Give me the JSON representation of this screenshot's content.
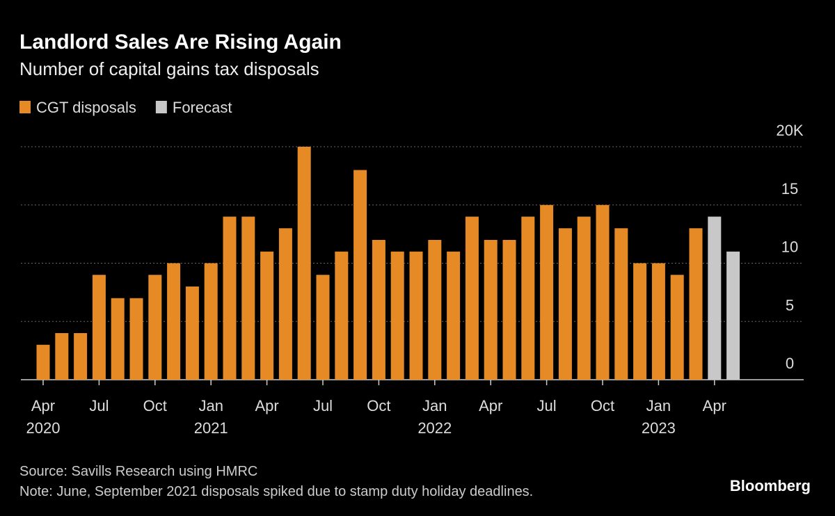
{
  "chart_data": {
    "type": "bar",
    "title": "Landlord Sales Are Rising Again",
    "subtitle": "Number of capital gains tax disposals",
    "source": "Source: Savills Research using HMRC",
    "note": "Note: June, September 2021 disposals spiked due to stamp duty holiday deadlines.",
    "brand": "Bloomberg",
    "categories": [
      "Apr",
      null,
      null,
      "Jul",
      null,
      null,
      "Oct",
      null,
      null,
      "Jan",
      null,
      null,
      "Apr",
      null,
      null,
      "Jul",
      null,
      null,
      "Oct",
      null,
      null,
      "Jan",
      null,
      null,
      "Apr",
      null,
      null,
      "Jul",
      null,
      null,
      "Oct",
      null,
      null,
      "Jan",
      null,
      null,
      "Apr",
      null
    ],
    "year_labels": [
      "2020",
      null,
      null,
      null,
      null,
      null,
      null,
      null,
      null,
      "2021",
      null,
      null,
      null,
      null,
      null,
      null,
      null,
      null,
      null,
      null,
      null,
      "2022",
      null,
      null,
      null,
      null,
      null,
      null,
      null,
      null,
      null,
      null,
      null,
      "2023",
      null,
      null,
      null,
      null
    ],
    "series": [
      {
        "name": "CGT disposals",
        "color": "#e58a25",
        "values": [
          3,
          4,
          4,
          9,
          7,
          7,
          9,
          10,
          8,
          10,
          14,
          14,
          11,
          13,
          20,
          9,
          11,
          18,
          12,
          11,
          11,
          12,
          11,
          14,
          12,
          12,
          14,
          15,
          13,
          14,
          15,
          13,
          10,
          10,
          9,
          13,
          null,
          null
        ]
      },
      {
        "name": "Forecast",
        "color": "#c8c8c8",
        "values": [
          null,
          null,
          null,
          null,
          null,
          null,
          null,
          null,
          null,
          null,
          null,
          null,
          null,
          null,
          null,
          null,
          null,
          null,
          null,
          null,
          null,
          null,
          null,
          null,
          null,
          null,
          null,
          null,
          null,
          null,
          null,
          null,
          null,
          null,
          null,
          null,
          14,
          11
        ]
      }
    ],
    "ylim": [
      0,
      20
    ],
    "yticks": [
      0,
      5,
      10,
      15,
      {
        "value": 20,
        "label": "20K"
      }
    ],
    "grid": true,
    "legend": "top-left"
  }
}
